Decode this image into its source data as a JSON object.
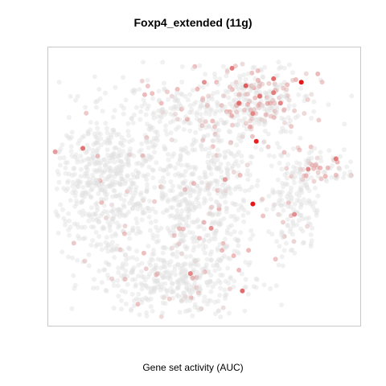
{
  "chart_data": {
    "type": "scatter",
    "title": "Foxp4_extended (11g)",
    "caption": "Gene set activity (AUC)",
    "xlim": [
      -45,
      45
    ],
    "ylim": [
      -40,
      40
    ],
    "axes_visible": false,
    "grid": false,
    "color_scale": {
      "low": "#e0e0e0",
      "high": "#e00000"
    },
    "clusters": [
      {
        "cx": -28,
        "cy": 2,
        "sx": 9,
        "sy": 11,
        "n": 650,
        "activity": 0.03
      },
      {
        "cx": -6,
        "cy": -4,
        "sx": 3.5,
        "sy": 9,
        "n": 160,
        "activity": 0.03
      },
      {
        "cx": -8,
        "cy": 22,
        "sx": 7,
        "sy": 5,
        "n": 140,
        "activity": 0.08
      },
      {
        "cx": 5,
        "cy": -2,
        "sx": 5,
        "sy": 11,
        "n": 260,
        "activity": 0.05
      },
      {
        "cx": -8,
        "cy": -26,
        "sx": 11,
        "sy": 6,
        "n": 380,
        "activity": 0.06
      },
      {
        "cx": 14,
        "cy": 24,
        "sx": 8,
        "sy": 6,
        "n": 320,
        "activity": 0.35
      },
      {
        "cx": 34,
        "cy": 6,
        "sx": 6,
        "sy": 2.5,
        "n": 80,
        "activity": 0.3
      },
      {
        "cx": 26,
        "cy": -6,
        "sx": 4,
        "sy": 7,
        "n": 150,
        "activity": 0.08
      }
    ],
    "highlight_points": [
      {
        "x": 28,
        "y": 30,
        "value": 1.0
      },
      {
        "x": 15,
        "y": 13,
        "value": 0.95
      },
      {
        "x": 14,
        "y": -5,
        "value": 1.0
      },
      {
        "x": 20,
        "y": 31,
        "value": 0.6
      },
      {
        "x": 12,
        "y": 29,
        "value": 0.65
      },
      {
        "x": 16,
        "y": 26,
        "value": 0.55
      },
      {
        "x": 20,
        "y": 27,
        "value": 0.5
      },
      {
        "x": 10,
        "y": 24,
        "value": 0.55
      },
      {
        "x": 8,
        "y": 34,
        "value": 0.5
      },
      {
        "x": 14,
        "y": 21,
        "value": 0.45
      },
      {
        "x": 22,
        "y": 24,
        "value": 0.45
      },
      {
        "x": 0,
        "y": 30,
        "value": 0.4
      },
      {
        "x": -35,
        "y": 11,
        "value": 0.55
      },
      {
        "x": 38,
        "y": 8,
        "value": 0.5
      },
      {
        "x": 30,
        "y": 5,
        "value": 0.45
      },
      {
        "x": 2,
        "y": -12,
        "value": 0.4
      },
      {
        "x": 11,
        "y": -30,
        "value": 0.6
      },
      {
        "x": -4,
        "y": -25,
        "value": 0.45
      },
      {
        "x": 26,
        "y": -8,
        "value": 0.4
      },
      {
        "x": 6,
        "y": 2,
        "value": 0.35
      },
      {
        "x": -43,
        "y": 10,
        "value": 0.35
      }
    ]
  }
}
